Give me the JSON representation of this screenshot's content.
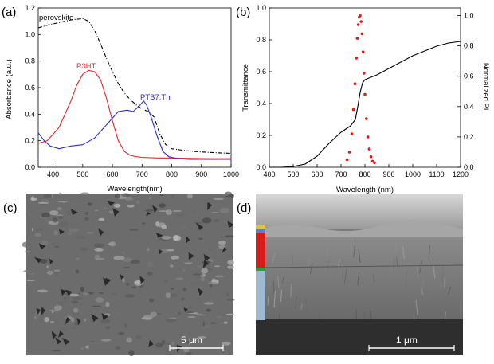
{
  "panels": {
    "a_label": "(a)",
    "b_label": "(b)",
    "c_label": "(c)",
    "d_label": "(d)"
  },
  "sem": {
    "c_scalebar": "5 μm",
    "d_scalebar": "1 μm"
  },
  "chart_data": [
    {
      "type": "line",
      "panel": "a",
      "xlabel": "Wavelength(nm)",
      "ylabel": "Absorbance (a.u.)",
      "xlim": [
        350,
        1000
      ],
      "ylim": [
        0,
        1.2
      ],
      "xticks": [
        400,
        500,
        600,
        700,
        800,
        900,
        1000
      ],
      "yticks": [
        0.0,
        0.2,
        0.4,
        0.6,
        0.8,
        1.0,
        1.2
      ],
      "ytick_labels": [
        "0.0",
        "0.2",
        "0.4",
        "0.6",
        "0.8",
        "1.0",
        "1.2"
      ],
      "series": [
        {
          "name": "perovskite",
          "color": "#000000",
          "style": "dash-dot",
          "x": [
            350,
            380,
            420,
            460,
            500,
            520,
            540,
            560,
            580,
            600,
            620,
            640,
            660,
            680,
            700,
            720,
            740,
            760,
            780,
            800,
            850,
            900,
            950,
            1000
          ],
          "y": [
            1.05,
            1.07,
            1.09,
            1.11,
            1.12,
            1.1,
            1.03,
            0.93,
            0.82,
            0.72,
            0.63,
            0.56,
            0.51,
            0.47,
            0.44,
            0.42,
            0.38,
            0.25,
            0.17,
            0.14,
            0.125,
            0.115,
            0.11,
            0.105
          ]
        },
        {
          "name": "P3HT",
          "color": "#e8262b",
          "style": "solid",
          "x": [
            350,
            380,
            420,
            460,
            480,
            500,
            520,
            540,
            560,
            580,
            600,
            620,
            640,
            660,
            680,
            700,
            750,
            800,
            850,
            900,
            950,
            1000
          ],
          "y": [
            0.18,
            0.2,
            0.3,
            0.5,
            0.62,
            0.7,
            0.73,
            0.72,
            0.66,
            0.52,
            0.35,
            0.2,
            0.12,
            0.09,
            0.08,
            0.075,
            0.07,
            0.07,
            0.068,
            0.066,
            0.065,
            0.065
          ]
        },
        {
          "name": "PTB7:Th",
          "color": "#2b2bd6",
          "style": "solid",
          "x": [
            350,
            370,
            390,
            420,
            460,
            500,
            540,
            580,
            620,
            650,
            670,
            690,
            705,
            715,
            730,
            750,
            770,
            790,
            820,
            860,
            900,
            950,
            1000
          ],
          "y": [
            0.26,
            0.2,
            0.16,
            0.14,
            0.16,
            0.17,
            0.22,
            0.32,
            0.42,
            0.43,
            0.42,
            0.46,
            0.5,
            0.47,
            0.38,
            0.24,
            0.12,
            0.08,
            0.065,
            0.06,
            0.06,
            0.06,
            0.06
          ]
        }
      ]
    },
    {
      "type": "line",
      "panel": "b",
      "xlabel": "Wavelength (nm)",
      "ylabel": "Transmittance",
      "y2label": "Normalized PL",
      "xlim": [
        400,
        1200
      ],
      "ylim": [
        0,
        1.0
      ],
      "y2lim": [
        0,
        1.05
      ],
      "xticks": [
        400,
        500,
        600,
        700,
        800,
        900,
        1000,
        1100,
        1200
      ],
      "yticks": [
        0.0,
        0.2,
        0.4,
        0.6,
        0.8,
        1.0
      ],
      "ytick_labels": [
        "0.0",
        "0.2",
        "0.4",
        "0.6",
        "0.8",
        "1.0"
      ],
      "y2ticks": [
        0.0,
        0.2,
        0.4,
        0.6,
        0.8,
        1.0
      ],
      "y2tick_labels": [
        "0.0",
        "0.2",
        "0.4",
        "0.6",
        "0.8",
        "1.0"
      ],
      "series": [
        {
          "color": "#000000",
          "style": "solid",
          "axis": "left",
          "x": [
            400,
            450,
            500,
            550,
            600,
            650,
            700,
            740,
            760,
            770,
            780,
            790,
            800,
            850,
            900,
            950,
            1000,
            1050,
            1100,
            1150,
            1200
          ],
          "y": [
            0.0,
            0.0,
            0.005,
            0.02,
            0.07,
            0.15,
            0.22,
            0.26,
            0.3,
            0.38,
            0.47,
            0.53,
            0.55,
            0.58,
            0.62,
            0.66,
            0.7,
            0.73,
            0.76,
            0.78,
            0.79
          ]
        },
        {
          "color": "#e01b1b",
          "style": "dots",
          "axis": "right",
          "x": [
            725,
            735,
            745,
            752,
            758,
            764,
            768,
            772,
            776,
            780,
            784,
            788,
            792,
            796,
            800,
            806,
            812,
            818,
            825,
            832,
            840
          ],
          "y": [
            0.05,
            0.1,
            0.22,
            0.38,
            0.55,
            0.72,
            0.85,
            0.94,
            0.99,
            1.0,
            0.96,
            0.88,
            0.76,
            0.62,
            0.48,
            0.32,
            0.2,
            0.12,
            0.07,
            0.04,
            0.03
          ]
        }
      ]
    }
  ]
}
